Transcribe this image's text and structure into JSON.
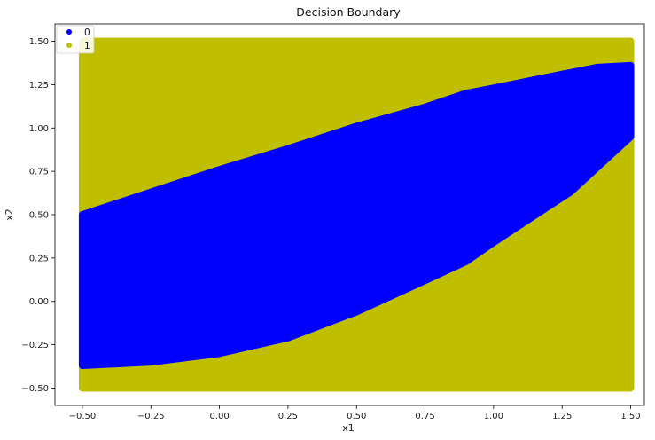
{
  "chart_data": {
    "type": "scatter",
    "title": "Decision Boundary",
    "xlabel": "x1",
    "ylabel": "x2",
    "xlim": [
      -0.6,
      1.55
    ],
    "ylim": [
      -0.6,
      1.6
    ],
    "x_ticks": [
      -0.5,
      -0.25,
      0.0,
      0.25,
      0.5,
      0.75,
      1.0,
      1.25,
      1.5
    ],
    "x_tick_labels": [
      "−0.50",
      "−0.25",
      "0.00",
      "0.25",
      "0.50",
      "0.75",
      "1.00",
      "1.25",
      "1.50"
    ],
    "y_ticks": [
      -0.5,
      -0.25,
      0.0,
      0.25,
      0.5,
      0.75,
      1.0,
      1.25,
      1.5
    ],
    "y_tick_labels": [
      "−0.50",
      "−0.25",
      "0.00",
      "0.25",
      "0.50",
      "0.75",
      "1.00",
      "1.25",
      "1.50"
    ],
    "grid": false,
    "legend_position": "top-left",
    "series": [
      {
        "name": "0",
        "color": "#0000ff",
        "region": "band between lower and upper boundary",
        "upper_boundary": [
          {
            "x": -0.5,
            "y": 0.5
          },
          {
            "x": -0.25,
            "y": 0.63
          },
          {
            "x": 0.0,
            "y": 0.76
          },
          {
            "x": 0.25,
            "y": 0.88
          },
          {
            "x": 0.5,
            "y": 1.01
          },
          {
            "x": 0.75,
            "y": 1.12
          },
          {
            "x": 0.9,
            "y": 1.2
          },
          {
            "x": 1.0,
            "y": 1.23
          },
          {
            "x": 1.25,
            "y": 1.31
          },
          {
            "x": 1.38,
            "y": 1.35
          },
          {
            "x": 1.5,
            "y": 1.36
          }
        ],
        "lower_boundary": [
          {
            "x": -0.5,
            "y": -0.37
          },
          {
            "x": -0.25,
            "y": -0.35
          },
          {
            "x": 0.0,
            "y": -0.3
          },
          {
            "x": 0.25,
            "y": -0.21
          },
          {
            "x": 0.5,
            "y": -0.06
          },
          {
            "x": 0.75,
            "y": 0.12
          },
          {
            "x": 0.9,
            "y": 0.23
          },
          {
            "x": 1.0,
            "y": 0.34
          },
          {
            "x": 1.25,
            "y": 0.6
          },
          {
            "x": 1.28,
            "y": 0.63
          },
          {
            "x": 1.5,
            "y": 0.95
          }
        ]
      },
      {
        "name": "1",
        "color": "#bfbf00",
        "region": "grid area x in [-0.5, 1.5], y in [-0.5, 1.5] outside class 0 band"
      }
    ],
    "grid_extent": {
      "x": [
        -0.5,
        1.5
      ],
      "y": [
        -0.5,
        1.5
      ]
    }
  }
}
